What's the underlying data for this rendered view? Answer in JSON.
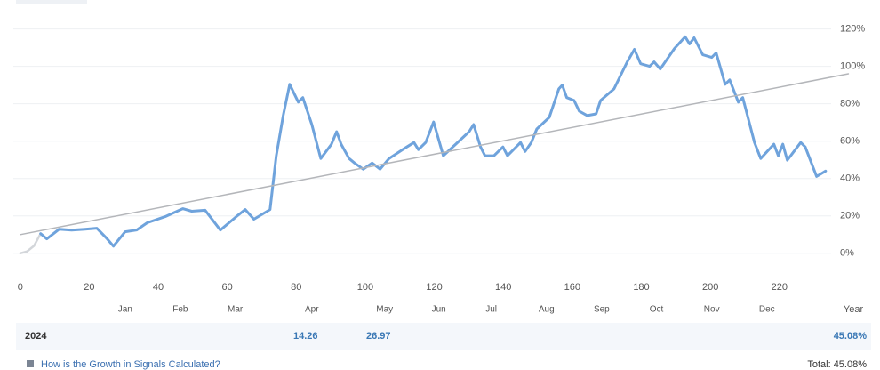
{
  "chart_data": {
    "type": "line",
    "x_label": "Year",
    "xlim": [
      -2,
      235
    ],
    "xticks": [
      0,
      20,
      40,
      60,
      80,
      100,
      120,
      140,
      160,
      180,
      200,
      220
    ],
    "ylim": [
      -12,
      126
    ],
    "yticks": [
      {
        "value": 0,
        "label": "0%"
      },
      {
        "value": 20,
        "label": "20%"
      },
      {
        "value": 40,
        "label": "40%"
      },
      {
        "value": 60,
        "label": "60%"
      },
      {
        "value": 80,
        "label": "80%"
      },
      {
        "value": 100,
        "label": "100%"
      },
      {
        "value": 120,
        "label": "120%"
      }
    ],
    "grid": true,
    "months": [
      {
        "label": "Jan",
        "x": 30.4
      },
      {
        "label": "Feb",
        "x": 46.4
      },
      {
        "label": "Mar",
        "x": 62.3
      },
      {
        "label": "Apr",
        "x": 84.5
      },
      {
        "label": "May",
        "x": 105.6
      },
      {
        "label": "Jun",
        "x": 121.3
      },
      {
        "label": "Jul",
        "x": 136.5
      },
      {
        "label": "Aug",
        "x": 152.5
      },
      {
        "label": "Sep",
        "x": 168.5
      },
      {
        "label": "Oct",
        "x": 184.4
      },
      {
        "label": "Nov",
        "x": 200.4
      },
      {
        "label": "Dec",
        "x": 216.4
      }
    ],
    "series": [
      {
        "color": "#d3d6da",
        "x": [
          0,
          2,
          4,
          5.9
        ],
        "values": [
          0,
          1,
          4,
          10.5
        ]
      },
      {
        "color": "#6fa3dc",
        "x": [
          5.9,
          7.7,
          11.3,
          14.9,
          18.8,
          22.2,
          25.2,
          27.0,
          30.4,
          33.7,
          36.8,
          42.0,
          47.1,
          49.7,
          53.6,
          58.0,
          62.6,
          65.2,
          67.7,
          72.4,
          74.2,
          76.2,
          78.1,
          80.6,
          81.9,
          84.5,
          87.1,
          90.2,
          91.7,
          93.0,
          95.3,
          96.9,
          99.4,
          102.0,
          104.3,
          106.9,
          110.8,
          114.1,
          115.4,
          117.5,
          119.8,
          122.6,
          126.2,
          130.1,
          131.4,
          133.4,
          134.7,
          137.3,
          139.9,
          141.2,
          145.0,
          146.3,
          148.1,
          149.7,
          153.3,
          156.1,
          157.1,
          158.4,
          160.5,
          162.0,
          164.3,
          166.9,
          168.2,
          172.1,
          175.9,
          178.0,
          179.8,
          182.4,
          183.7,
          185.5,
          189.6,
          192.7,
          194.0,
          195.3,
          197.8,
          200.4,
          201.7,
          204.3,
          205.6,
          208.1,
          209.4,
          212.8,
          214.6,
          218.4,
          219.7,
          221.0,
          222.3,
          226.2,
          227.5,
          230.8,
          233.4
        ],
        "values": [
          10.5,
          7.7,
          12.9,
          12.4,
          12.9,
          13.4,
          7.7,
          3.8,
          11.5,
          12.4,
          16.3,
          19.6,
          23.9,
          22.5,
          23.0,
          12.4,
          19.6,
          23.4,
          18.2,
          23.4,
          52.2,
          73.7,
          90.4,
          80.9,
          83.3,
          68.9,
          50.7,
          58.4,
          65.1,
          58.4,
          50.7,
          48.3,
          45.0,
          48.3,
          45.0,
          50.7,
          55.5,
          59.3,
          55.5,
          59.3,
          70.3,
          52.2,
          58.4,
          65.1,
          68.9,
          56.9,
          52.2,
          52.2,
          56.9,
          52.2,
          59.3,
          54.5,
          59.3,
          66.5,
          72.7,
          88.0,
          90.0,
          83.3,
          81.8,
          76.1,
          73.7,
          74.6,
          81.8,
          88.0,
          102.4,
          109.1,
          101.4,
          100.0,
          102.4,
          98.6,
          109.6,
          115.8,
          112.0,
          115.3,
          106.2,
          104.8,
          107.2,
          90.4,
          92.8,
          80.9,
          83.3,
          59.3,
          50.7,
          58.4,
          52.2,
          58.4,
          49.8,
          59.3,
          56.9,
          41.1,
          44.0
        ]
      },
      {
        "color": "#b4b6ba",
        "x": [
          0,
          240
        ],
        "values": [
          10,
          96
        ]
      }
    ]
  },
  "table": {
    "rows": [
      [
        "2024",
        "14.26",
        "26.97",
        "45.08%"
      ]
    ]
  },
  "footer": {
    "link": "How is the Growth in Signals Calculated?",
    "total": "Total: 45.08%"
  }
}
